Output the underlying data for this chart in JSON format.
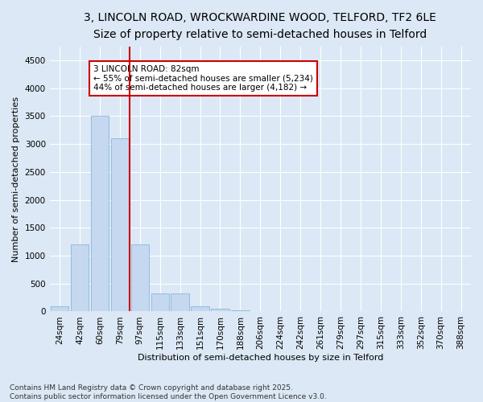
{
  "title_line1": "3, LINCOLN ROAD, WROCKWARDINE WOOD, TELFORD, TF2 6LE",
  "title_line2": "Size of property relative to semi-detached houses in Telford",
  "xlabel": "Distribution of semi-detached houses by size in Telford",
  "ylabel": "Number of semi-detached properties",
  "categories": [
    "24sqm",
    "42sqm",
    "60sqm",
    "79sqm",
    "97sqm",
    "115sqm",
    "133sqm",
    "151sqm",
    "170sqm",
    "188sqm",
    "206sqm",
    "224sqm",
    "242sqm",
    "261sqm",
    "279sqm",
    "297sqm",
    "315sqm",
    "333sqm",
    "352sqm",
    "370sqm",
    "388sqm"
  ],
  "values": [
    100,
    1200,
    3500,
    3100,
    1200,
    320,
    320,
    100,
    50,
    20,
    5,
    2,
    1,
    0,
    0,
    0,
    0,
    0,
    0,
    0,
    0
  ],
  "bar_color": "#c5d8f0",
  "bar_edge_color": "#7bafd4",
  "vline_color": "#cc0000",
  "annotation_text": "3 LINCOLN ROAD: 82sqm\n← 55% of semi-detached houses are smaller (5,234)\n44% of semi-detached houses are larger (4,182) →",
  "annotation_box_color": "#ffffff",
  "annotation_box_edge": "#cc0000",
  "ylim": [
    0,
    4750
  ],
  "yticks": [
    0,
    500,
    1000,
    1500,
    2000,
    2500,
    3000,
    3500,
    4000,
    4500
  ],
  "footnote": "Contains HM Land Registry data © Crown copyright and database right 2025.\nContains public sector information licensed under the Open Government Licence v3.0.",
  "background_color": "#dce8f5",
  "plot_bg_color": "#dce8f5",
  "grid_color": "#ffffff",
  "title_fontsize": 10,
  "subtitle_fontsize": 9,
  "axis_label_fontsize": 8,
  "tick_fontsize": 7.5,
  "footnote_fontsize": 6.5
}
